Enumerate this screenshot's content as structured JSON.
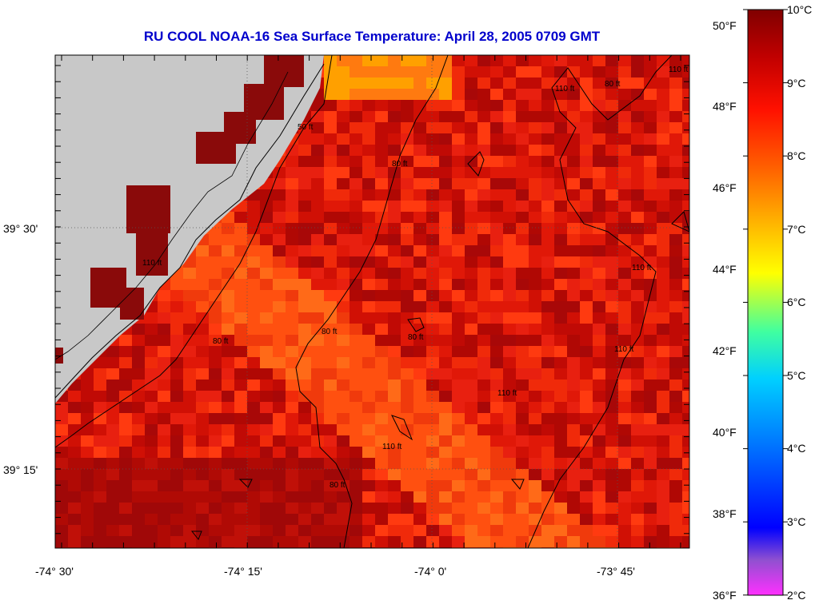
{
  "title": "RU COOL  NOAA-16  Sea Surface Temperature:  April 28, 2005 0709 GMT",
  "map": {
    "lon_ticks": [
      "-74° 30'",
      "-74° 15'",
      "-74° 0'",
      "-73° 45'"
    ],
    "lat_ticks": [
      "39° 30'",
      "39° 15'"
    ],
    "land_color": "#c8c8c8",
    "contour_labels": [
      "110 ft",
      "80 ft",
      "110 ft",
      "50 ft",
      "80 ft",
      "80 ft",
      "110 ft",
      "80 ft",
      "80 ft",
      "110 ft",
      "110 ft",
      "110 ft",
      "80 ft",
      "110 ft"
    ]
  },
  "colorbar": {
    "celsius_labels": [
      "10°C",
      "9°C",
      "8°C",
      "7°C",
      "6°C",
      "5°C",
      "4°C",
      "3°C",
      "2°C"
    ],
    "fahrenheit_labels": [
      "50°F",
      "48°F",
      "46°F",
      "44°F",
      "42°F",
      "40°F",
      "38°F",
      "36°F"
    ],
    "colors": [
      "#ff00ff",
      "#8040c0",
      "#0000ff",
      "#0060ff",
      "#00b0ff",
      "#00ffff",
      "#40ff80",
      "#ffff00",
      "#ffc000",
      "#ff8000",
      "#ff3000",
      "#e00000",
      "#b00000",
      "#800000"
    ]
  }
}
